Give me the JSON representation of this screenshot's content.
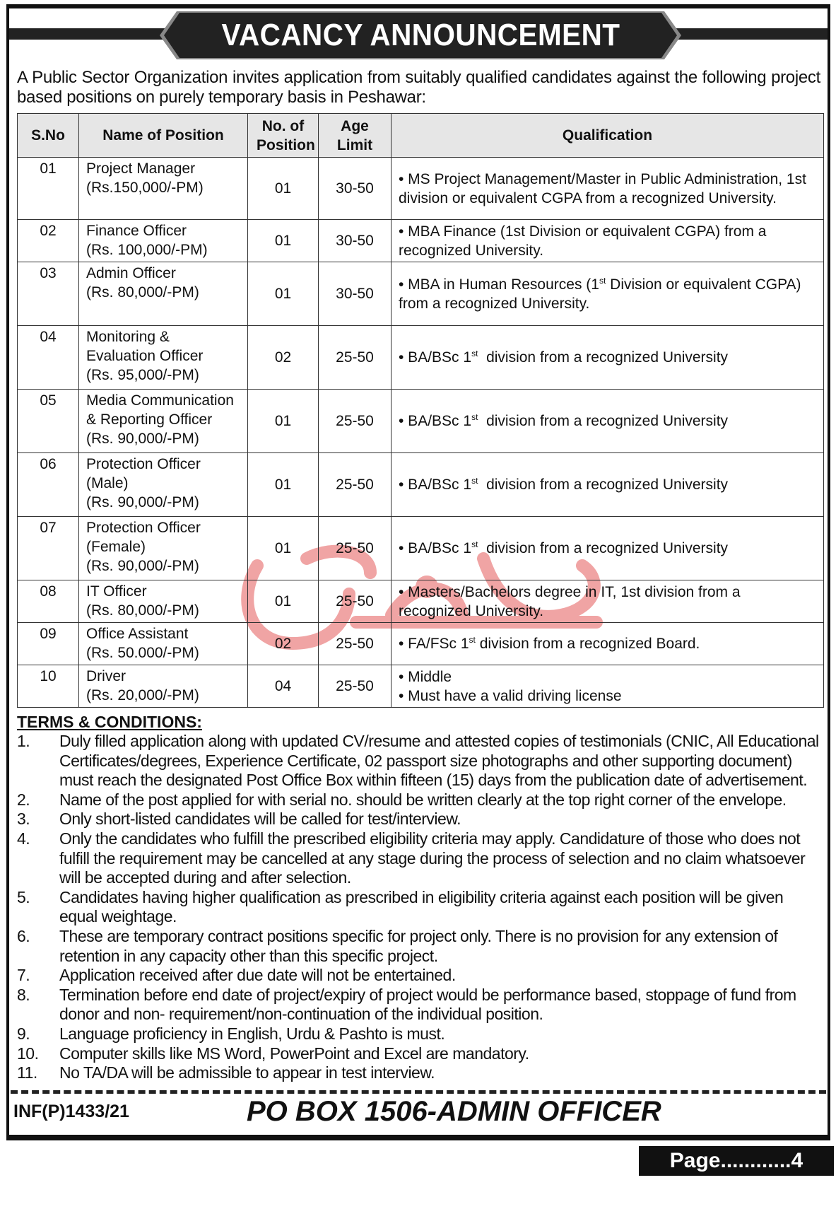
{
  "title": "VACANCY ANNOUNCEMENT",
  "intro": "A Public Sector Organization invites application from suitably qualified candidates against the following project based positions on purely temporary basis in Peshawar:",
  "table": {
    "headers": [
      "S.No",
      "Name of Position",
      "No. of Position",
      "Age Limit",
      "Qualification"
    ],
    "rows": [
      {
        "sno": "01",
        "name": [
          "Project Manager",
          "(Rs.150,000/-PM)"
        ],
        "count": "01",
        "age": "30-50",
        "qual": [
          {
            "pre": "• MS Project Management/Master in Public Administration, 1st division or equivalent CGPA from a recognized University."
          }
        ]
      },
      {
        "sno": "02",
        "name": [
          "Finance Officer",
          "(Rs. 100,000/-PM)"
        ],
        "count": "01",
        "age": "30-50",
        "qual": [
          {
            "pre": "• MBA Finance (1st Division or equivalent CGPA) from a recognized University."
          }
        ]
      },
      {
        "sno": "03",
        "name": [
          "Admin Officer",
          "(Rs. 80,000/-PM)"
        ],
        "count": "01",
        "age": "30-50",
        "qual": [
          {
            "pre": "• MBA in Human Resources (1",
            "sup": "st",
            "post": " Division or equivalent CGPA) from a recognized University."
          }
        ]
      },
      {
        "sno": "04",
        "name": [
          "Monitoring &",
          "Evaluation Officer",
          "(Rs. 95,000/-PM)"
        ],
        "count": "02",
        "age": "25-50",
        "qual": [
          {
            "pre": "• BA/BSc 1",
            "sup": "st",
            "post": "  division from a recognized University"
          }
        ]
      },
      {
        "sno": "05",
        "name": [
          "Media Communication",
          "& Reporting Officer",
          "(Rs. 90,000/-PM)"
        ],
        "count": "01",
        "age": "25-50",
        "qual": [
          {
            "pre": "• BA/BSc 1",
            "sup": "st",
            "post": "  division from a recognized University"
          }
        ]
      },
      {
        "sno": "06",
        "name": [
          "Protection Officer",
          "(Male)",
          "(Rs. 90,000/-PM)"
        ],
        "count": "01",
        "age": "25-50",
        "qual": [
          {
            "pre": "• BA/BSc 1",
            "sup": "st",
            "post": "  division from a recognized University"
          }
        ]
      },
      {
        "sno": "07",
        "name": [
          "Protection Officer",
          "(Female)",
          "(Rs. 90,000/-PM)"
        ],
        "count": "01",
        "age": "25-50",
        "qual": [
          {
            "pre": "• BA/BSc 1",
            "sup": "st",
            "post": "  division from a recognized University"
          }
        ]
      },
      {
        "sno": "08",
        "name": [
          "IT Officer",
          "(Rs. 80,000/-PM)"
        ],
        "count": "01",
        "age": "25-50",
        "qual": [
          {
            "pre": "• Masters/Bachelors degree in IT, 1st division from a recognized University."
          }
        ]
      },
      {
        "sno": "09",
        "name": [
          "Office Assistant",
          "(Rs. 50.000/-PM)"
        ],
        "count": "02",
        "age": "25-50",
        "qual": [
          {
            "pre": "• FA/FSc 1",
            "sup": "st",
            "post": " division from a recognized Board."
          }
        ]
      },
      {
        "sno": "10",
        "name": [
          "Driver",
          "(Rs. 20,000/-PM)"
        ],
        "count": "04",
        "age": "25-50",
        "qual": [
          {
            "pre": "• Middle"
          },
          {
            "pre": "• Must have a valid driving license"
          }
        ]
      }
    ]
  },
  "watermark": "مشرق",
  "terms_heading": "TERMS & CONDITIONS:",
  "terms": [
    {
      "n": "1.",
      "text": "Duly filled application along with updated CV/resume and attested copies of testimonials (CNIC, All Educational Certificates/degrees, Experience Certificate, 02 passport size photographs and other supporting document) must reach the designated Post Office Box within fifteen (15) days from the publication date of advertisement."
    },
    {
      "n": "2.",
      "text": "Name of the post applied for with serial no. should be written clearly at the top right corner of the envelope."
    },
    {
      "n": "3.",
      "text": "Only short-listed candidates will be called for test/interview."
    },
    {
      "n": "4.",
      "text": "Only the candidates who fulfill the prescribed eligibility criteria may apply. Candidature of those who does not fulfill the requirement may be cancelled at any stage during the process of selection and no claim whatsoever will be accepted during and after selection."
    },
    {
      "n": "5.",
      "text": "Candidates having higher qualification as prescribed in eligibility criteria against each position will be given equal weightage."
    },
    {
      "n": "6.",
      "text": "These are temporary contract positions specific for project only. There is no provision for any extension of retention in any capacity other than this specific project."
    },
    {
      "n": "7.",
      "text": "Application received after due date will not be entertained."
    },
    {
      "n": "8.",
      "text": "Termination before end date of project/expiry of project would be performance based, stoppage of fund from donor and non- requirement/non-continuation of the individual position."
    },
    {
      "n": "9.",
      "text": "Language proficiency in English, Urdu & Pashto is must."
    },
    {
      "n": "10.",
      "text": "Computer skills like MS Word, PowerPoint and Excel are mandatory."
    },
    {
      "n": "11.",
      "text": "No TA/DA will be admissible to appear in test interview."
    }
  ],
  "footer": {
    "ref": "INF(P)1433/21",
    "pobox": "PO BOX 1506-ADMIN OFFICER",
    "page": "Page............4"
  }
}
